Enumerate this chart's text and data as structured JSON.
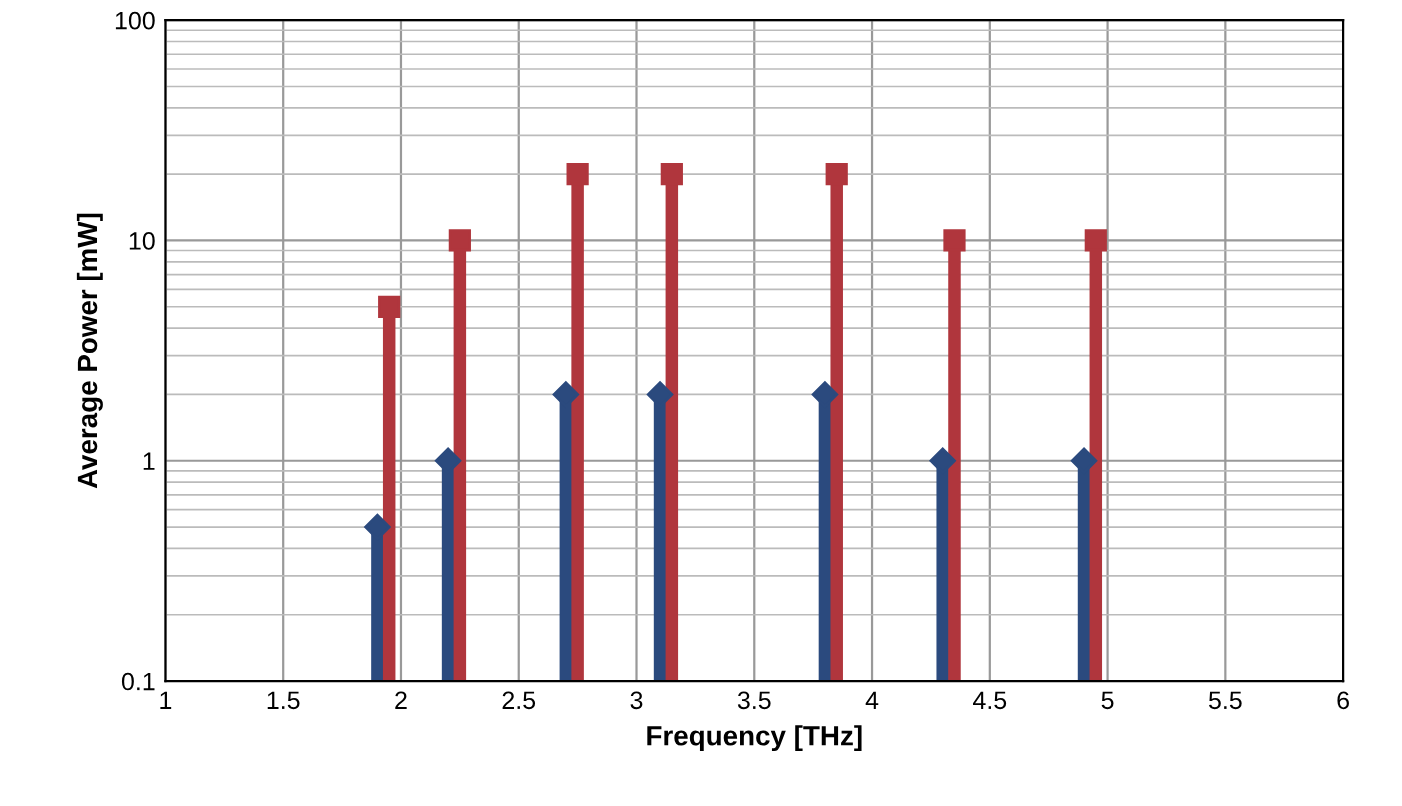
{
  "chart_data": {
    "type": "lollipop",
    "xlabel": "Frequency [THz]",
    "ylabel": "Average Power [mW]",
    "log": "y",
    "xlim": [
      1,
      6
    ],
    "xticks": [
      1,
      1.5,
      2,
      2.5,
      3,
      3.5,
      4,
      4.5,
      5,
      5.5,
      6
    ],
    "ylim": [
      0.1,
      100
    ],
    "yticks": [
      0.1,
      1,
      10,
      100
    ],
    "grid": true,
    "series": [
      {
        "color": "#2b4a7e",
        "marker": "diamond",
        "x": [
          1.9,
          2.2,
          2.7,
          3.1,
          3.8,
          4.3,
          4.9
        ],
        "values": [
          0.5,
          1,
          2,
          2,
          2,
          1,
          1
        ]
      },
      {
        "color": "#b0363d",
        "marker": "square",
        "x": [
          1.95,
          2.25,
          2.75,
          3.15,
          3.85,
          4.35,
          4.95
        ],
        "values": [
          5,
          10,
          20,
          20,
          20,
          10,
          10
        ]
      }
    ]
  }
}
